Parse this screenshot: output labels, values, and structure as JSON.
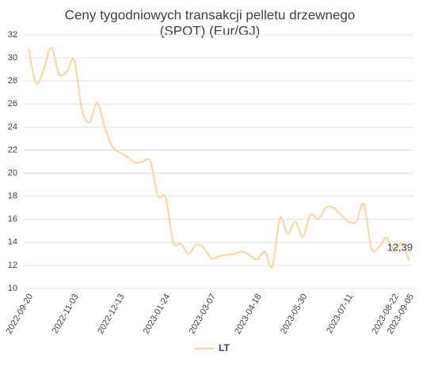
{
  "chart_data": {
    "type": "line",
    "title": [
      "Ceny tygodniowych transakcji pelletu drzewnego",
      "(SPOT) (Eur/GJ)"
    ],
    "categories": [
      "2022-09-20",
      null,
      null,
      null,
      null,
      null,
      "2022-11-03",
      null,
      null,
      null,
      null,
      null,
      "2022-12-13",
      null,
      null,
      null,
      null,
      null,
      "2023-01-24",
      null,
      null,
      null,
      null,
      null,
      "2023-03-07",
      null,
      null,
      null,
      null,
      null,
      "2023-04-18",
      null,
      null,
      null,
      null,
      null,
      "2023-05-30",
      null,
      null,
      null,
      null,
      null,
      "2023-07-11",
      null,
      null,
      null,
      null,
      null,
      "2023-08-22",
      null,
      "2023-09-05"
    ],
    "series": [
      {
        "name": "LT",
        "color": "#f6d5a6",
        "values": [
          30.8,
          27.8,
          29.0,
          30.9,
          28.6,
          28.8,
          29.8,
          25.5,
          24.4,
          26.1,
          24.0,
          22.3,
          21.8,
          21.4,
          20.9,
          21.0,
          21.0,
          18.0,
          17.9,
          14.0,
          13.9,
          13.0,
          13.8,
          13.5,
          12.6,
          12.8,
          12.9,
          13.0,
          13.2,
          12.9,
          12.5,
          13.2,
          11.9,
          16.1,
          14.7,
          15.8,
          14.5,
          16.4,
          16.0,
          17.0,
          17.0,
          16.4,
          15.8,
          15.8,
          17.3,
          13.5,
          13.6,
          14.4,
          13.3,
          13.9,
          12.39
        ],
        "value_labels": [
          null,
          null,
          null,
          null,
          null,
          null,
          null,
          null,
          null,
          null,
          null,
          null,
          null,
          null,
          null,
          null,
          null,
          null,
          null,
          null,
          null,
          null,
          null,
          null,
          null,
          null,
          null,
          null,
          null,
          null,
          null,
          null,
          null,
          null,
          null,
          null,
          null,
          null,
          null,
          null,
          null,
          null,
          null,
          null,
          null,
          null,
          null,
          null,
          null,
          null,
          "12,39"
        ]
      }
    ],
    "ylim": [
      10,
      32
    ],
    "yticks": [
      10,
      12,
      14,
      16,
      18,
      20,
      22,
      24,
      26,
      28,
      30,
      32
    ],
    "grid": true,
    "legend": "bottom"
  }
}
